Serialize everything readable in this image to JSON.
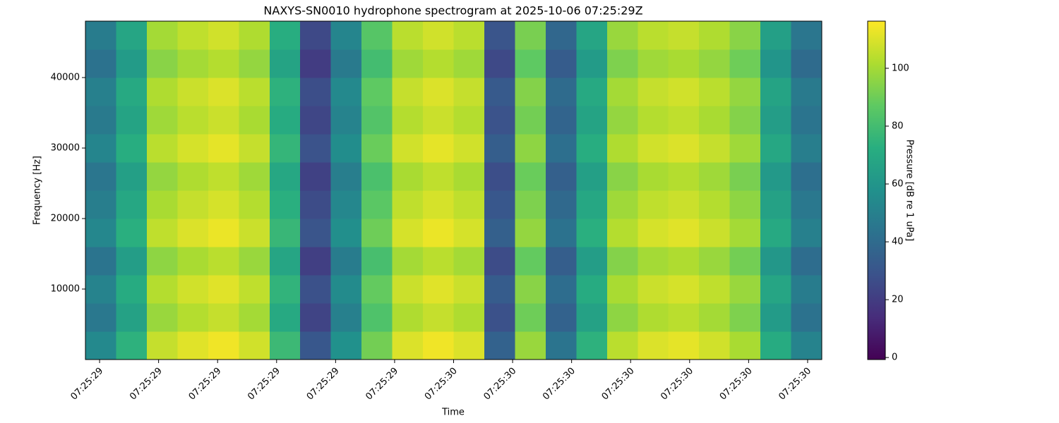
{
  "chart_data": {
    "type": "heatmap",
    "title": "NAXYS-SN0010 hydrophone spectrogram at 2025-10-06 07:25:29Z",
    "x_label": "Time",
    "y_label": "Frequency [Hz]",
    "colorbar_label": "Pressure [dB re 1 uPa]",
    "colormap": "viridis",
    "x_edges": [
      29.376,
      29.428,
      29.48,
      29.532,
      29.584,
      29.636,
      29.688,
      29.74,
      29.792,
      29.844,
      29.896,
      29.948,
      30.0,
      30.052,
      30.104,
      30.156,
      30.208,
      30.26,
      30.312,
      30.364,
      30.416,
      30.468,
      30.52,
      30.572,
      30.624
    ],
    "y_edges": [
      0,
      4000,
      8000,
      12000,
      16000,
      20000,
      24000,
      28000,
      32000,
      36000,
      40000,
      44000,
      48000
    ],
    "z": [
      [
        54,
        74,
        106,
        111,
        114,
        108,
        78,
        31,
        58,
        91,
        110,
        114,
        110,
        36,
        98,
        44,
        74,
        104,
        110,
        112,
        108,
        101,
        71,
        51
      ],
      [
        46,
        66,
        98,
        103,
        106,
        100,
        70,
        23,
        50,
        83,
        102,
        106,
        102,
        28,
        90,
        36,
        66,
        96,
        102,
        104,
        100,
        93,
        63,
        43
      ],
      [
        51,
        71,
        103,
        108,
        111,
        105,
        75,
        28,
        55,
        88,
        107,
        111,
        107,
        33,
        95,
        41,
        71,
        101,
        107,
        109,
        105,
        98,
        68,
        48
      ],
      [
        44,
        64,
        96,
        101,
        104,
        98,
        68,
        21,
        48,
        81,
        100,
        104,
        100,
        26,
        88,
        34,
        64,
        94,
        100,
        102,
        98,
        91,
        61,
        41
      ],
      [
        53,
        73,
        105,
        110,
        113,
        107,
        77,
        30,
        57,
        90,
        109,
        113,
        109,
        35,
        97,
        43,
        73,
        103,
        109,
        111,
        107,
        100,
        70,
        50
      ],
      [
        49,
        69,
        101,
        106,
        109,
        103,
        73,
        26,
        53,
        86,
        105,
        109,
        105,
        31,
        93,
        39,
        69,
        99,
        105,
        107,
        103,
        96,
        66,
        46
      ],
      [
        45,
        65,
        97,
        102,
        105,
        99,
        69,
        22,
        49,
        82,
        101,
        105,
        101,
        27,
        89,
        35,
        65,
        95,
        101,
        103,
        99,
        92,
        62,
        42
      ],
      [
        52,
        72,
        104,
        109,
        112,
        106,
        76,
        29,
        56,
        89,
        108,
        112,
        108,
        34,
        96,
        42,
        72,
        102,
        108,
        110,
        106,
        99,
        69,
        49
      ],
      [
        47,
        67,
        99,
        104,
        107,
        101,
        71,
        24,
        51,
        84,
        103,
        107,
        103,
        29,
        91,
        37,
        67,
        97,
        103,
        105,
        101,
        94,
        64,
        44
      ],
      [
        50,
        70,
        102,
        107,
        110,
        104,
        74,
        27,
        54,
        87,
        106,
        110,
        106,
        32,
        94,
        40,
        70,
        100,
        106,
        108,
        104,
        97,
        67,
        47
      ],
      [
        43,
        63,
        95,
        100,
        103,
        97,
        67,
        20,
        47,
        80,
        99,
        103,
        99,
        25,
        87,
        33,
        63,
        93,
        99,
        101,
        97,
        90,
        60,
        40
      ],
      [
        48,
        68,
        100,
        105,
        108,
        102,
        72,
        25,
        52,
        85,
        104,
        108,
        104,
        30,
        92,
        38,
        68,
        98,
        104,
        106,
        102,
        95,
        65,
        45
      ]
    ],
    "xlim": [
      29.376,
      30.624
    ],
    "xticks": [
      {
        "value": 29.4,
        "label": "07:25:29"
      },
      {
        "value": 29.5,
        "label": "07:25:29"
      },
      {
        "value": 29.6,
        "label": "07:25:29"
      },
      {
        "value": 29.7,
        "label": "07:25:29"
      },
      {
        "value": 29.8,
        "label": "07:25:29"
      },
      {
        "value": 29.9,
        "label": "07:25:29"
      },
      {
        "value": 30.0,
        "label": "07:25:30"
      },
      {
        "value": 30.1,
        "label": "07:25:30"
      },
      {
        "value": 30.2,
        "label": "07:25:30"
      },
      {
        "value": 30.3,
        "label": "07:25:30"
      },
      {
        "value": 30.4,
        "label": "07:25:30"
      },
      {
        "value": 30.5,
        "label": "07:25:30"
      },
      {
        "value": 30.6,
        "label": "07:25:30"
      }
    ],
    "ylim": [
      0,
      48000
    ],
    "yticks": [
      10000,
      20000,
      30000,
      40000
    ],
    "clim": [
      -0.7,
      116.3
    ],
    "cticks": [
      0,
      20,
      40,
      60,
      80,
      100
    ]
  }
}
